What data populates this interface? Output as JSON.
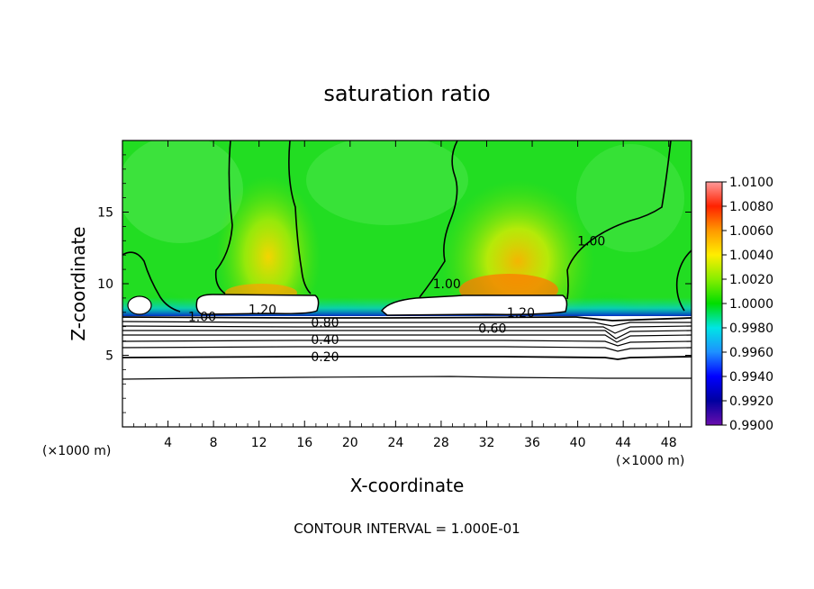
{
  "chart_data": {
    "type": "heatmap",
    "title": "saturation ratio",
    "xlabel": "X-coordinate",
    "ylabel": "Z-coordinate",
    "x_unit": "(×1000 m)",
    "x_unit_right": "(×1000 m)",
    "xlim": [
      0,
      50
    ],
    "ylim": [
      0,
      20
    ],
    "x_ticks": [
      4,
      8,
      12,
      16,
      20,
      24,
      28,
      32,
      36,
      40,
      44,
      48
    ],
    "y_ticks": [
      5,
      10,
      15
    ],
    "colorbar": {
      "levels": [
        0.99,
        0.992,
        0.994,
        0.996,
        0.998,
        1.0,
        1.002,
        1.004,
        1.006,
        1.008,
        1.01
      ],
      "labels": [
        "0.9900",
        "0.9920",
        "0.9940",
        "0.9960",
        "0.9980",
        "1.0000",
        "1.0020",
        "1.0040",
        "1.0060",
        "1.0080",
        "1.0100"
      ],
      "colors": [
        "#6a0dad",
        "#0000a0",
        "#0000ff",
        "#1e90ff",
        "#00e5e5",
        "#00dd00",
        "#88ee00",
        "#ffee00",
        "#ff9900",
        "#ff2200",
        "#ff9a9a"
      ]
    },
    "contour_labels": [
      {
        "text": "1.00",
        "x": 7.0,
        "z": 7.7
      },
      {
        "text": "1.20",
        "x": 12.3,
        "z": 8.2
      },
      {
        "text": "0.80",
        "x": 17.8,
        "z": 7.3
      },
      {
        "text": "0.40",
        "x": 17.8,
        "z": 6.1
      },
      {
        "text": "0.20",
        "x": 17.8,
        "z": 4.9
      },
      {
        "text": "1.00",
        "x": 28.5,
        "z": 10.0
      },
      {
        "text": "1.20",
        "x": 35.0,
        "z": 8.0
      },
      {
        "text": "0.60",
        "x": 32.5,
        "z": 6.9
      },
      {
        "text": "1.00",
        "x": 41.2,
        "z": 13.0
      }
    ],
    "contour_interval_note": "CONTOUR INTERVAL = 1.000E-01"
  }
}
